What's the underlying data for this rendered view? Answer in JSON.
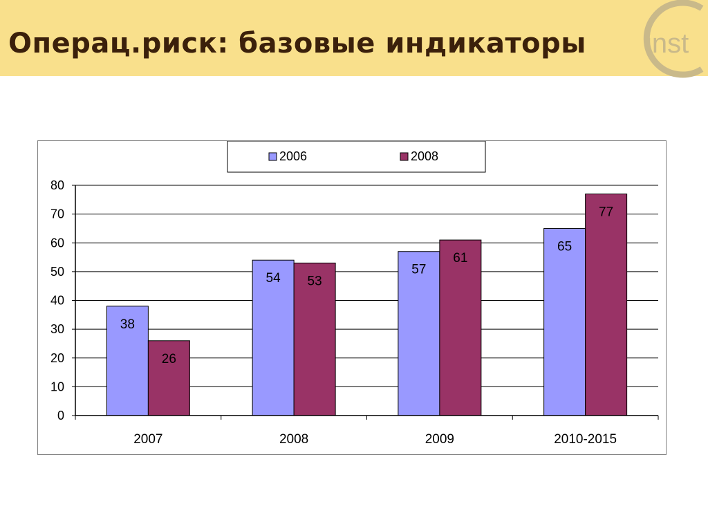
{
  "header": {
    "title": "Операц.риск: базовые индикаторы",
    "logo_text": "inst"
  },
  "colors": {
    "header_bg": "#f9e08c",
    "title": "#3b200b",
    "series_2006": "#9999ff",
    "series_2008": "#993366",
    "logo": "#c9b98a"
  },
  "chart_data": {
    "type": "bar",
    "categories": [
      "2007",
      "2008",
      "2009",
      "2010-2015"
    ],
    "series": [
      {
        "name": "2006",
        "values": [
          38,
          54,
          57,
          65
        ],
        "color": "#9999ff"
      },
      {
        "name": "2008",
        "values": [
          26,
          53,
          61,
          77
        ],
        "color": "#993366"
      }
    ],
    "ylim": [
      0,
      80
    ],
    "yticks": [
      0,
      10,
      20,
      30,
      40,
      50,
      60,
      70,
      80
    ],
    "grid": true,
    "legend": "top-center",
    "title": "",
    "xlabel": "",
    "ylabel": ""
  }
}
